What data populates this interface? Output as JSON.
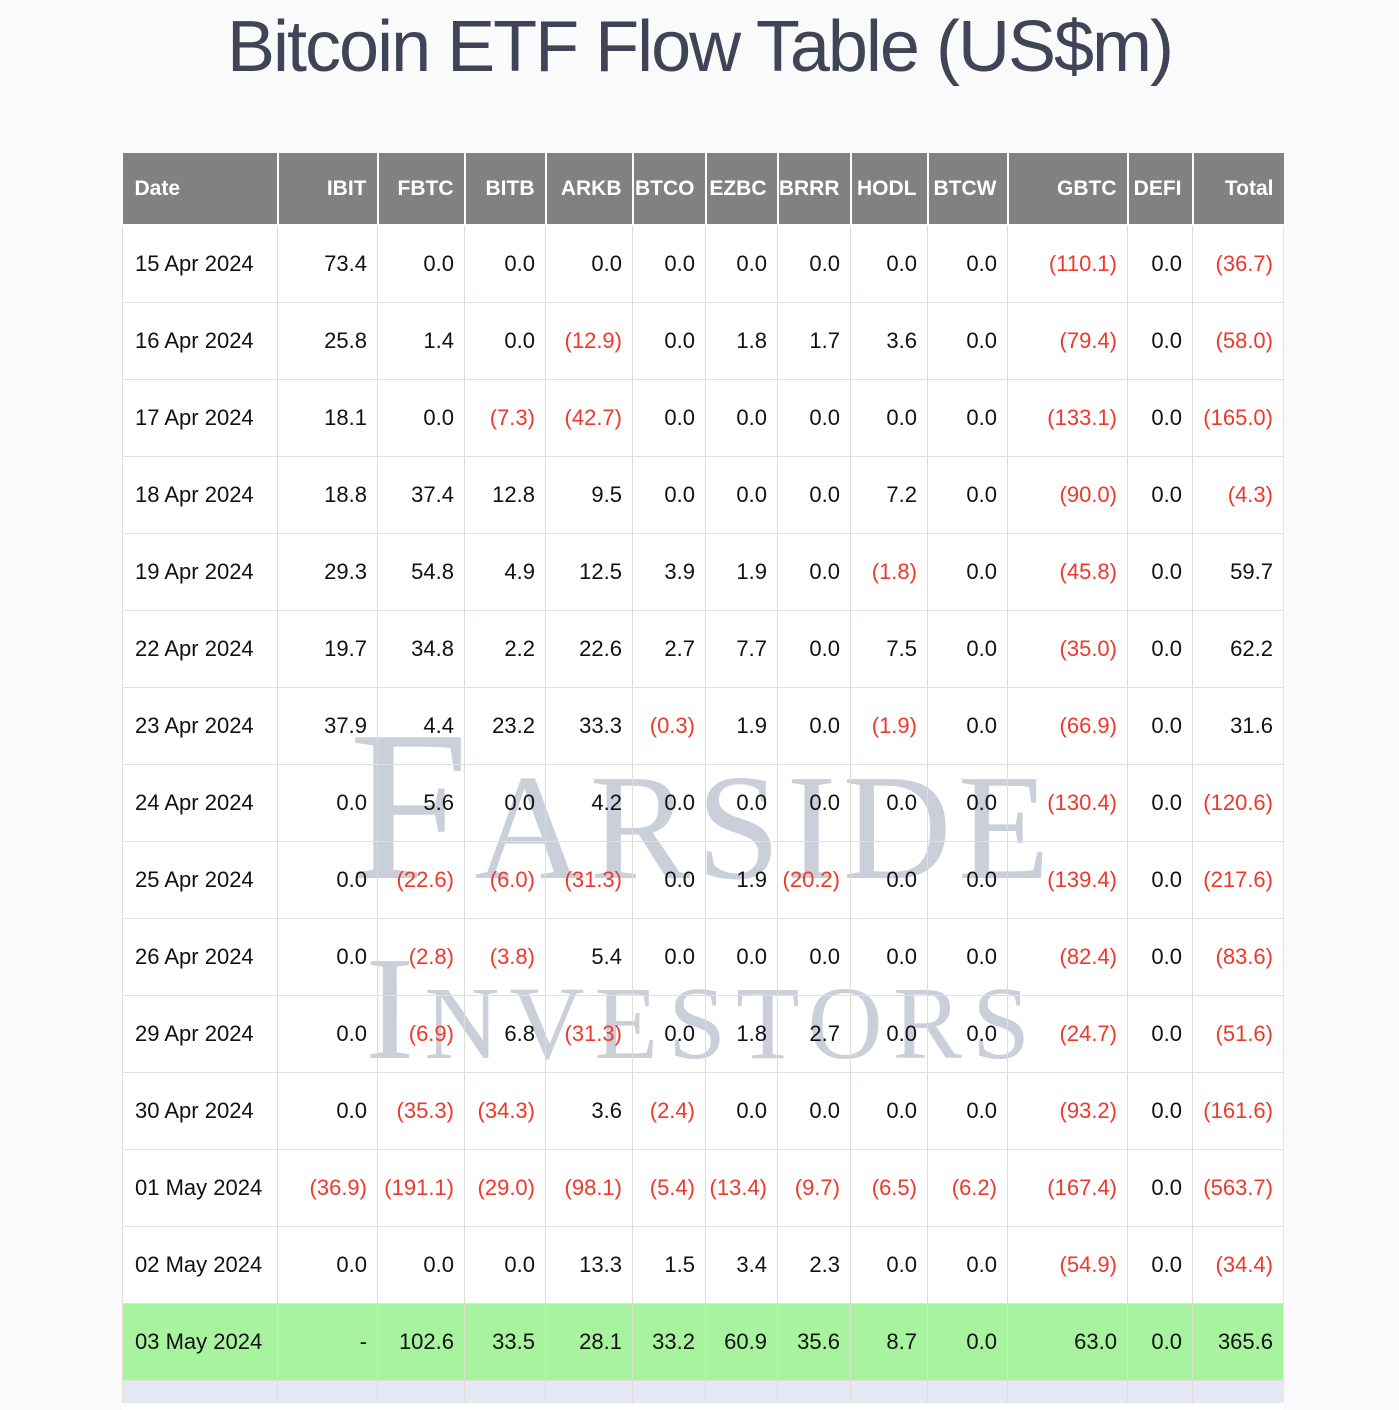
{
  "page": {
    "title": "Bitcoin ETF Flow Table (US$m)"
  },
  "watermark": {
    "line1": "Farside",
    "line2": "Investors"
  },
  "colors": {
    "title_text": "#3f4457",
    "header_bg": "#818181",
    "header_text": "#ffffff",
    "negative_value": "#ee382b",
    "positive_value": "#111111",
    "highlight_row_bg": "#a8f49e",
    "partial_row_bg": "#e5e9f3",
    "grid_line": "#dfdcd4",
    "watermark_text": "#c7cdde"
  },
  "chart_data": {
    "type": "table",
    "title": "Bitcoin ETF Flow Table (US$m)",
    "units": "US$m",
    "negative_format": "parentheses-red",
    "columns": [
      "Date",
      "IBIT",
      "FBTC",
      "BITB",
      "ARKB",
      "BTCO",
      "EZBC",
      "BRRR",
      "HODL",
      "BTCW",
      "GBTC",
      "DEFI",
      "Total"
    ],
    "rows": [
      {
        "date": "15 Apr 2024",
        "values": [
          73.4,
          0.0,
          0.0,
          0.0,
          0.0,
          0.0,
          0.0,
          0.0,
          0.0,
          -110.1,
          0.0,
          -36.7
        ],
        "highlight": false
      },
      {
        "date": "16 Apr 2024",
        "values": [
          25.8,
          1.4,
          0.0,
          -12.9,
          0.0,
          1.8,
          1.7,
          3.6,
          0.0,
          -79.4,
          0.0,
          -58.0
        ],
        "highlight": false
      },
      {
        "date": "17 Apr 2024",
        "values": [
          18.1,
          0.0,
          -7.3,
          -42.7,
          0.0,
          0.0,
          0.0,
          0.0,
          0.0,
          -133.1,
          0.0,
          -165.0
        ],
        "highlight": false
      },
      {
        "date": "18 Apr 2024",
        "values": [
          18.8,
          37.4,
          12.8,
          9.5,
          0.0,
          0.0,
          0.0,
          7.2,
          0.0,
          -90.0,
          0.0,
          -4.3
        ],
        "highlight": false
      },
      {
        "date": "19 Apr 2024",
        "values": [
          29.3,
          54.8,
          4.9,
          12.5,
          3.9,
          1.9,
          0.0,
          -1.8,
          0.0,
          -45.8,
          0.0,
          59.7
        ],
        "highlight": false
      },
      {
        "date": "22 Apr 2024",
        "values": [
          19.7,
          34.8,
          2.2,
          22.6,
          2.7,
          7.7,
          0.0,
          7.5,
          0.0,
          -35.0,
          0.0,
          62.2
        ],
        "highlight": false
      },
      {
        "date": "23 Apr 2024",
        "values": [
          37.9,
          4.4,
          23.2,
          33.3,
          -0.3,
          1.9,
          0.0,
          -1.9,
          0.0,
          -66.9,
          0.0,
          31.6
        ],
        "highlight": false
      },
      {
        "date": "24 Apr 2024",
        "values": [
          0.0,
          5.6,
          0.0,
          4.2,
          0.0,
          0.0,
          0.0,
          0.0,
          0.0,
          -130.4,
          0.0,
          -120.6
        ],
        "highlight": false
      },
      {
        "date": "25 Apr 2024",
        "values": [
          0.0,
          -22.6,
          -6.0,
          -31.3,
          0.0,
          1.9,
          -20.2,
          0.0,
          0.0,
          -139.4,
          0.0,
          -217.6
        ],
        "highlight": false
      },
      {
        "date": "26 Apr 2024",
        "values": [
          0.0,
          -2.8,
          -3.8,
          5.4,
          0.0,
          0.0,
          0.0,
          0.0,
          0.0,
          -82.4,
          0.0,
          -83.6
        ],
        "highlight": false
      },
      {
        "date": "29 Apr 2024",
        "values": [
          0.0,
          -6.9,
          6.8,
          -31.3,
          0.0,
          1.8,
          2.7,
          0.0,
          0.0,
          -24.7,
          0.0,
          -51.6
        ],
        "highlight": false
      },
      {
        "date": "30 Apr 2024",
        "values": [
          0.0,
          -35.3,
          -34.3,
          3.6,
          -2.4,
          0.0,
          0.0,
          0.0,
          0.0,
          -93.2,
          0.0,
          -161.6
        ],
        "highlight": false
      },
      {
        "date": "01 May 2024",
        "values": [
          -36.9,
          -191.1,
          -29.0,
          -98.1,
          -5.4,
          -13.4,
          -9.7,
          -6.5,
          -6.2,
          -167.4,
          0.0,
          -563.7
        ],
        "highlight": false
      },
      {
        "date": "02 May 2024",
        "values": [
          0.0,
          0.0,
          0.0,
          13.3,
          1.5,
          3.4,
          2.3,
          0.0,
          0.0,
          -54.9,
          0.0,
          -34.4
        ],
        "highlight": false
      },
      {
        "date": "03 May 2024",
        "values": [
          "-",
          102.6,
          33.5,
          28.1,
          33.2,
          60.9,
          35.6,
          8.7,
          0.0,
          63.0,
          0.0,
          365.6
        ],
        "highlight": true
      }
    ]
  }
}
